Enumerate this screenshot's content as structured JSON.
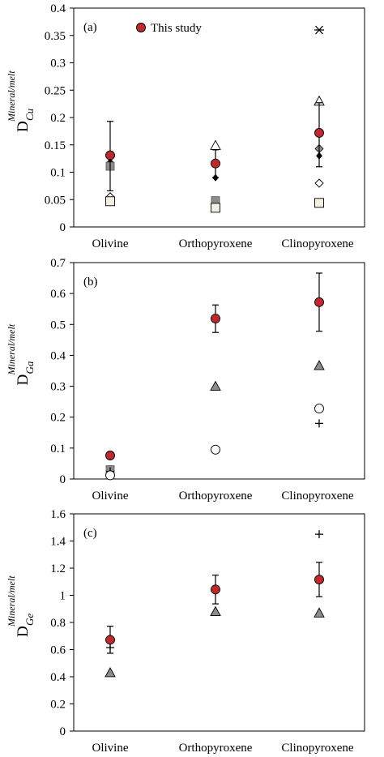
{
  "chart_data": [
    {
      "type": "scatter",
      "panel_label": "(a)",
      "legend_label": "This study",
      "legend_location": "top-left",
      "ylabel_main": "D",
      "ylabel_sup": "Mineral/melt",
      "ylabel_sub": "Cu",
      "categories": [
        "Olivine",
        "Orthopyroxene",
        "Clinopyroxene"
      ],
      "ylim": [
        0,
        0.4
      ],
      "yticks": [
        0,
        0.05,
        0.1,
        0.15,
        0.2,
        0.25,
        0.3,
        0.35,
        0.4
      ],
      "ytick_labels": [
        "0",
        "0.05",
        "0.1",
        "0.15",
        "0.2",
        "0.25",
        "0.3",
        "0.35",
        "0.4"
      ],
      "this_study": [
        {
          "category": "Olivine",
          "value": 0.131,
          "error_low": 0.066,
          "error_high": 0.193
        },
        {
          "category": "Orthopyroxene",
          "value": 0.116,
          "error_low": 0.09,
          "error_high": 0.141
        },
        {
          "category": "Clinopyroxene",
          "value": 0.172,
          "error_low": 0.11,
          "error_high": 0.227
        }
      ],
      "literature": [
        {
          "category": "Olivine",
          "marker": "diamond-black",
          "value": 0.119
        },
        {
          "category": "Olivine",
          "marker": "square-gray",
          "value": 0.111
        },
        {
          "category": "Olivine",
          "marker": "diamond-open",
          "value": 0.055
        },
        {
          "category": "Olivine",
          "marker": "square-open",
          "value": 0.047
        },
        {
          "category": "Orthopyroxene",
          "marker": "triangle-open",
          "value": 0.149
        },
        {
          "category": "Orthopyroxene",
          "marker": "diamond-black",
          "value": 0.09
        },
        {
          "category": "Orthopyroxene",
          "marker": "square-gray",
          "value": 0.048
        },
        {
          "category": "Orthopyroxene",
          "marker": "square-open",
          "value": 0.035
        },
        {
          "category": "Clinopyroxene",
          "marker": "asterisk",
          "value": 0.36
        },
        {
          "category": "Clinopyroxene",
          "marker": "triangle-open",
          "value": 0.23
        },
        {
          "category": "Clinopyroxene",
          "marker": "diamond-gray",
          "value": 0.143
        },
        {
          "category": "Clinopyroxene",
          "marker": "diamond-black",
          "value": 0.13
        },
        {
          "category": "Clinopyroxene",
          "marker": "diamond-open",
          "value": 0.08
        },
        {
          "category": "Clinopyroxene",
          "marker": "square-open",
          "value": 0.044
        }
      ]
    },
    {
      "type": "scatter",
      "panel_label": "(b)",
      "ylabel_main": "D",
      "ylabel_sup": "Mineral/melt",
      "ylabel_sub": "Ga",
      "categories": [
        "Olivine",
        "Orthopyroxene",
        "Clinopyroxene"
      ],
      "ylim": [
        0,
        0.7
      ],
      "yticks": [
        0,
        0.1,
        0.2,
        0.3,
        0.4,
        0.5,
        0.6,
        0.7
      ],
      "ytick_labels": [
        "0",
        "0.1",
        "0.2",
        "0.3",
        "0.4",
        "0.5",
        "0.6",
        "0.7"
      ],
      "this_study": [
        {
          "category": "Olivine",
          "value": 0.076
        },
        {
          "category": "Orthopyroxene",
          "value": 0.519,
          "error_low": 0.474,
          "error_high": 0.563
        },
        {
          "category": "Clinopyroxene",
          "value": 0.572,
          "error_low": 0.478,
          "error_high": 0.666
        }
      ],
      "literature": [
        {
          "category": "Olivine",
          "marker": "square-gray",
          "value": 0.03
        },
        {
          "category": "Olivine",
          "marker": "plus",
          "value": 0.025
        },
        {
          "category": "Olivine",
          "marker": "circle-open",
          "value": 0.012
        },
        {
          "category": "Orthopyroxene",
          "marker": "triangle-gray",
          "value": 0.3
        },
        {
          "category": "Orthopyroxene",
          "marker": "circle-open",
          "value": 0.095
        },
        {
          "category": "Clinopyroxene",
          "marker": "triangle-gray",
          "value": 0.367
        },
        {
          "category": "Clinopyroxene",
          "marker": "circle-open",
          "value": 0.228
        },
        {
          "category": "Clinopyroxene",
          "marker": "plus",
          "value": 0.18
        }
      ]
    },
    {
      "type": "scatter",
      "panel_label": "(c)",
      "ylabel_main": "D",
      "ylabel_sup": "Mineral/melt",
      "ylabel_sub": "Ge",
      "categories": [
        "Olivine",
        "Orthopyroxene",
        "Clinopyroxene"
      ],
      "ylim": [
        0,
        1.6
      ],
      "yticks": [
        0,
        0.2,
        0.4,
        0.6,
        0.8,
        1.0,
        1.2,
        1.4,
        1.6
      ],
      "ytick_labels": [
        "0",
        "0.2",
        "0.4",
        "0.6",
        "0.8",
        "1",
        "1.2",
        "1.4",
        "1.6"
      ],
      "this_study": [
        {
          "category": "Olivine",
          "value": 0.672,
          "error_low": 0.573,
          "error_high": 0.772
        },
        {
          "category": "Orthopyroxene",
          "value": 1.043,
          "error_low": 0.937,
          "error_high": 1.149
        },
        {
          "category": "Clinopyroxene",
          "value": 1.116,
          "error_low": 0.99,
          "error_high": 1.243
        }
      ],
      "literature": [
        {
          "category": "Olivine",
          "marker": "plus",
          "value": 0.615
        },
        {
          "category": "Olivine",
          "marker": "triangle-gray",
          "value": 0.43
        },
        {
          "category": "Orthopyroxene",
          "marker": "triangle-gray",
          "value": 0.88
        },
        {
          "category": "Clinopyroxene",
          "marker": "plus",
          "value": 1.45
        },
        {
          "category": "Clinopyroxene",
          "marker": "triangle-gray",
          "value": 0.87
        }
      ]
    }
  ],
  "colors": {
    "this_study_fill": "#c0282d",
    "gray_fill": "#8c8c8c",
    "square_open_fill": "#f2f1e1",
    "axis": "#000000"
  }
}
